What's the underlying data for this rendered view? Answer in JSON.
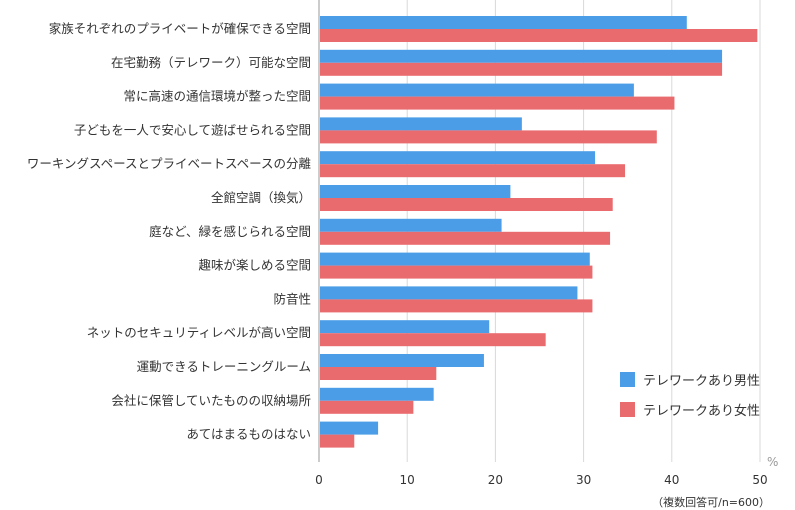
{
  "chart_data": {
    "type": "bar",
    "orientation": "horizontal",
    "categories": [
      "家族それぞれのプライベートが確保できる空間",
      "在宅勤務（テレワーク）可能な空間",
      "常に高速の通信環境が整った空間",
      "子どもを一人で安心して遊ばせられる空間",
      "ワーキングスペースとプライベートスペースの分離",
      "全館空調（換気）",
      "庭など、緑を感じられる空間",
      "趣味が楽しめる空間",
      "防音性",
      "ネットのセキュリティレベルが高い空間",
      "運動できるトレーニングルーム",
      "会社に保管していたものの収納場所",
      "あてはまるものはない"
    ],
    "series": [
      {
        "name": "テレワークあり男性",
        "color": "#4a9de6",
        "values": [
          41.7,
          45.7,
          35.7,
          23.0,
          31.3,
          21.7,
          20.7,
          30.7,
          29.3,
          19.3,
          18.7,
          13.0,
          6.7
        ]
      },
      {
        "name": "テレワークあり女性",
        "color": "#ea6b6e",
        "values": [
          49.7,
          45.7,
          40.3,
          38.3,
          34.7,
          33.3,
          33.0,
          31.0,
          31.0,
          25.7,
          13.3,
          10.7,
          4.0
        ]
      }
    ],
    "xlim": [
      0,
      50
    ],
    "xticks": [
      "0",
      "10",
      "20",
      "30",
      "40",
      "50"
    ],
    "xunit": "%",
    "note": "（複数回答可/n=600）",
    "grid": true,
    "legend_position": "bottom-right"
  }
}
